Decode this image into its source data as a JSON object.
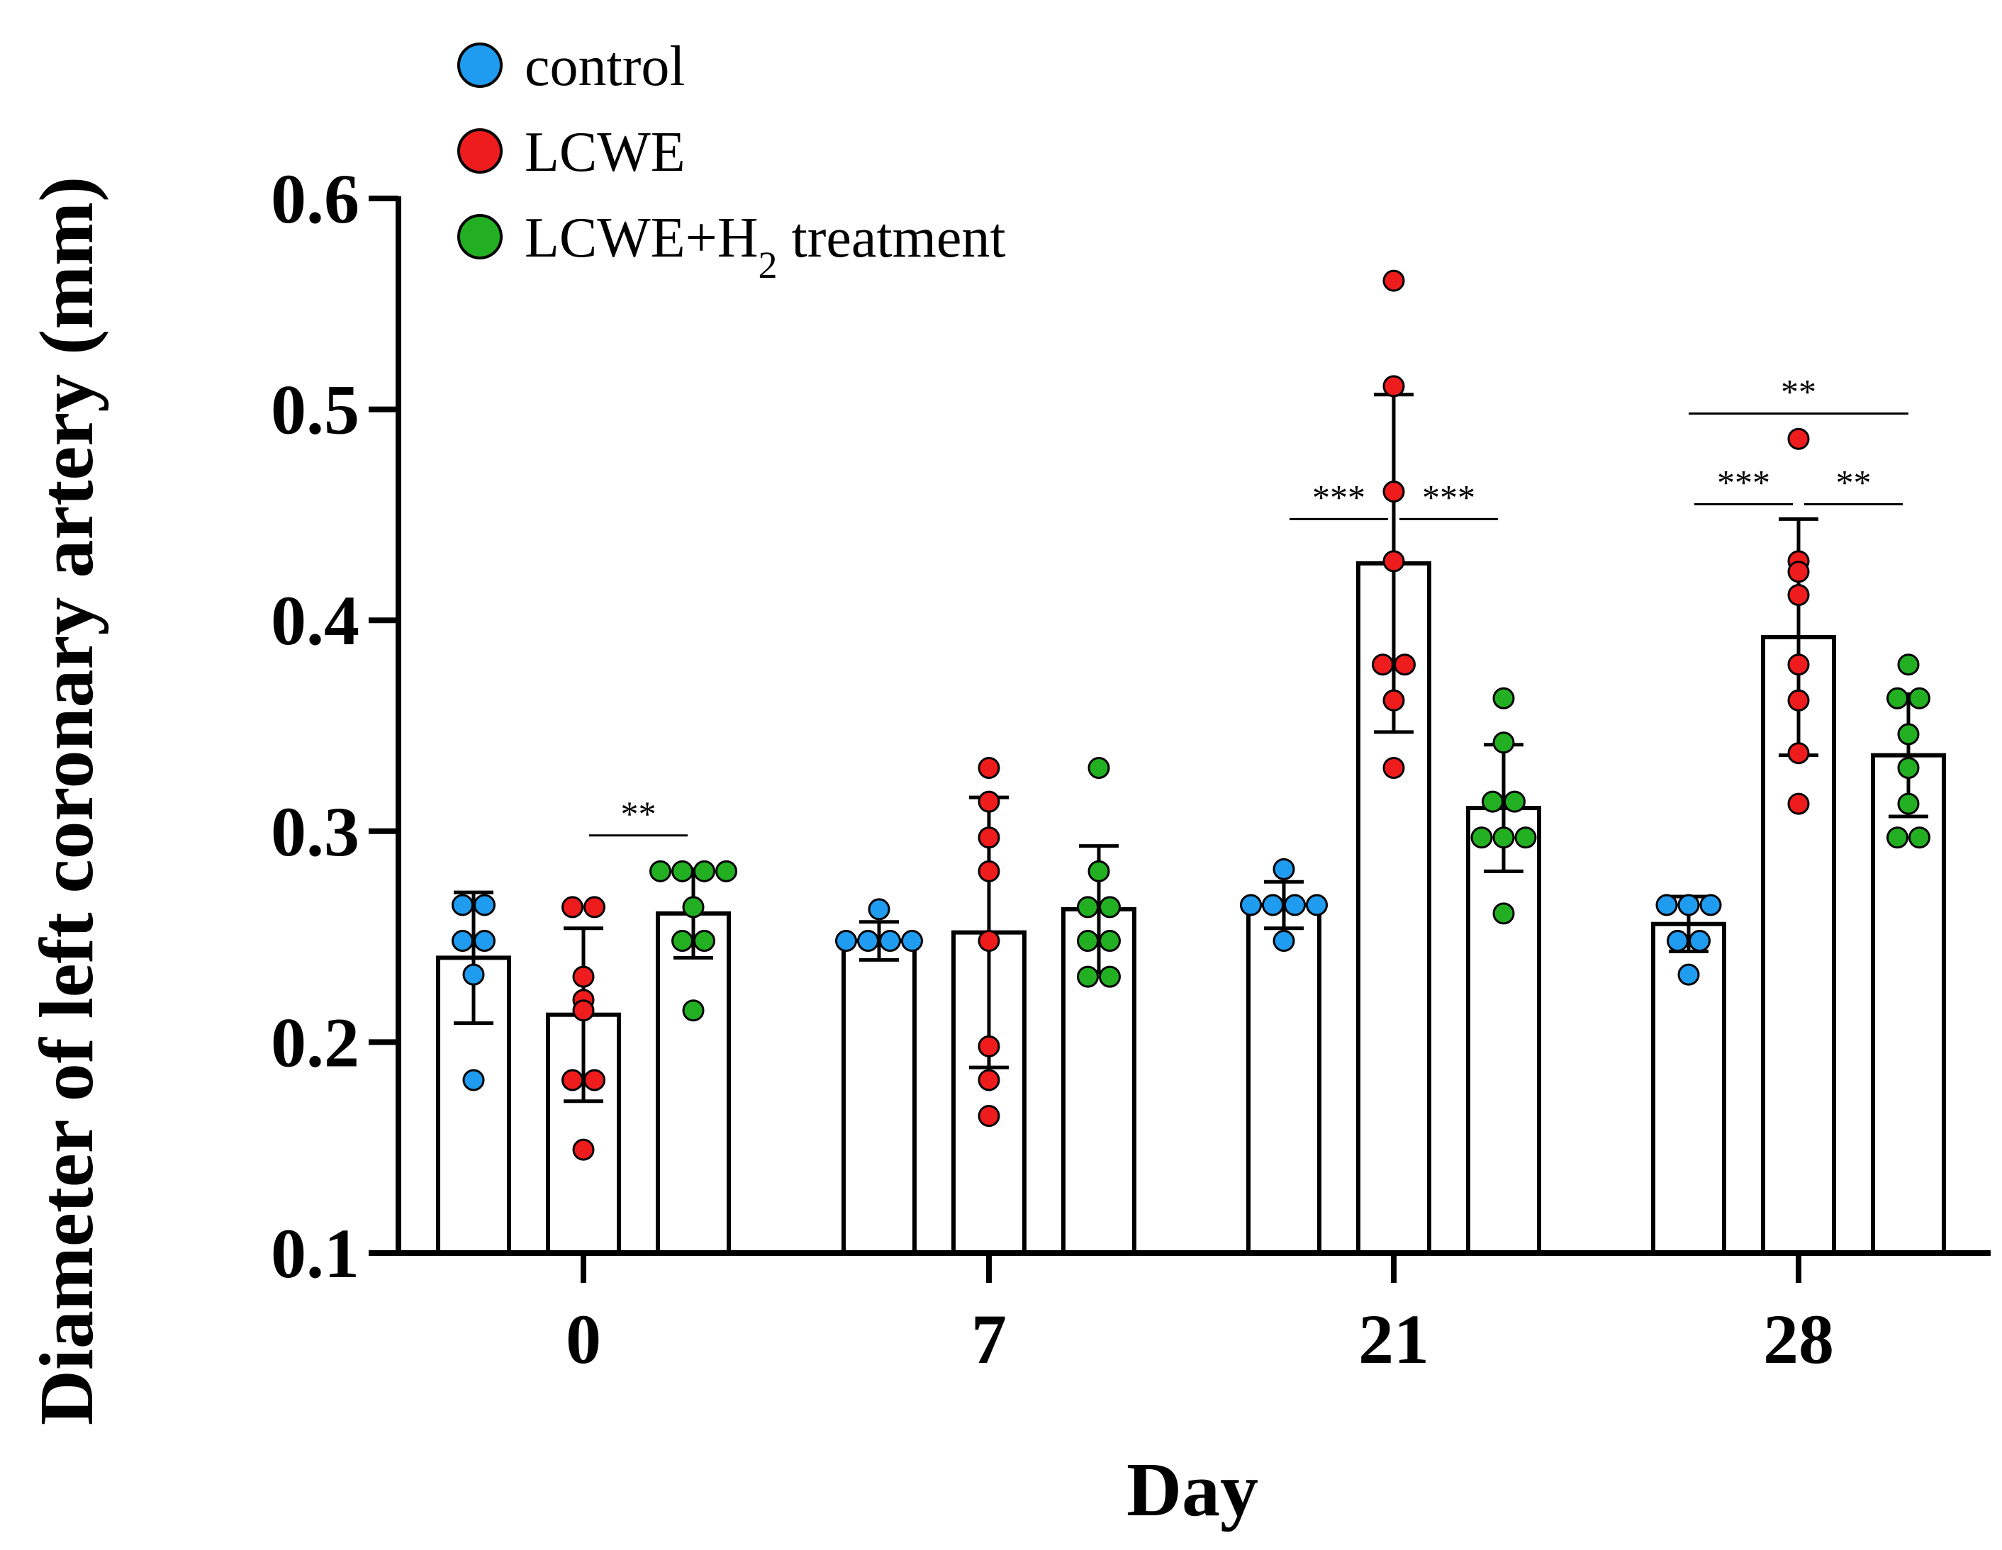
{
  "chart_data": {
    "type": "bar",
    "title": "",
    "xlabel": "Day",
    "ylabel": "Diameter of left coronary artery (mm)",
    "ylim": [
      0.1,
      0.6
    ],
    "yticks": [
      "0.1",
      "0.2",
      "0.3",
      "0.4",
      "0.5",
      "0.6"
    ],
    "grid": false,
    "legend_position": "top-left",
    "categories": [
      "0",
      "7",
      "21",
      "28"
    ],
    "series": [
      {
        "name": "control",
        "legend": {
          "base": "control",
          "sub": "",
          "tail": ""
        },
        "color": "#1f9bf0",
        "values": [
          0.24,
          0.248,
          0.265,
          0.256
        ],
        "errors": [
          0.031,
          0.009,
          0.011,
          0.013
        ],
        "points": [
          [
            0.265,
            0.265,
            0.248,
            0.248,
            0.232,
            0.182
          ],
          [
            0.263,
            0.248,
            0.248,
            0.248,
            0.248
          ],
          [
            0.282,
            0.265,
            0.265,
            0.265,
            0.265,
            0.248
          ],
          [
            0.265,
            0.265,
            0.265,
            0.248,
            0.248,
            0.232
          ]
        ]
      },
      {
        "name": "LCWE",
        "legend": {
          "base": "LCWE",
          "sub": "",
          "tail": ""
        },
        "color": "#ee1c1c",
        "values": [
          0.213,
          0.252,
          0.427,
          0.392
        ],
        "errors": [
          0.041,
          0.064,
          0.08,
          0.056
        ],
        "points": [
          [
            0.264,
            0.264,
            0.231,
            0.22,
            0.215,
            0.182,
            0.182,
            0.149
          ],
          [
            0.33,
            0.314,
            0.297,
            0.281,
            0.248,
            0.198,
            0.182,
            0.165
          ],
          [
            0.561,
            0.511,
            0.461,
            0.428,
            0.379,
            0.379,
            0.362,
            0.33
          ],
          [
            0.486,
            0.428,
            0.423,
            0.412,
            0.379,
            0.362,
            0.337,
            0.313
          ]
        ]
      },
      {
        "name": "LCWE+H2 treatment",
        "legend": {
          "base": "LCWE+H",
          "sub": "2",
          "tail": " treatment"
        },
        "color": "#22b022",
        "values": [
          0.261,
          0.263,
          0.311,
          0.336
        ],
        "errors": [
          0.021,
          0.03,
          0.03,
          0.029
        ],
        "points": [
          [
            0.281,
            0.281,
            0.281,
            0.281,
            0.264,
            0.248,
            0.248,
            0.215
          ],
          [
            0.33,
            0.281,
            0.264,
            0.264,
            0.248,
            0.248,
            0.231,
            0.231
          ],
          [
            0.363,
            0.342,
            0.314,
            0.314,
            0.297,
            0.297,
            0.297,
            0.261
          ],
          [
            0.379,
            0.363,
            0.363,
            0.346,
            0.33,
            0.313,
            0.297,
            0.297
          ]
        ]
      }
    ],
    "significance": [
      {
        "category": 0,
        "from": 1,
        "to": 2,
        "level": 0.298,
        "label": "**"
      },
      {
        "category": 2,
        "from": 0,
        "to": 1,
        "level": 0.448,
        "label": "***"
      },
      {
        "category": 2,
        "from": 1,
        "to": 2,
        "level": 0.448,
        "label": "***"
      },
      {
        "category": 3,
        "from": 0,
        "to": 1,
        "level": 0.455,
        "label": "***"
      },
      {
        "category": 3,
        "from": 1,
        "to": 2,
        "level": 0.455,
        "label": "**"
      },
      {
        "category": 3,
        "from": 0,
        "to": 2,
        "level": 0.498,
        "label": "**"
      }
    ]
  }
}
